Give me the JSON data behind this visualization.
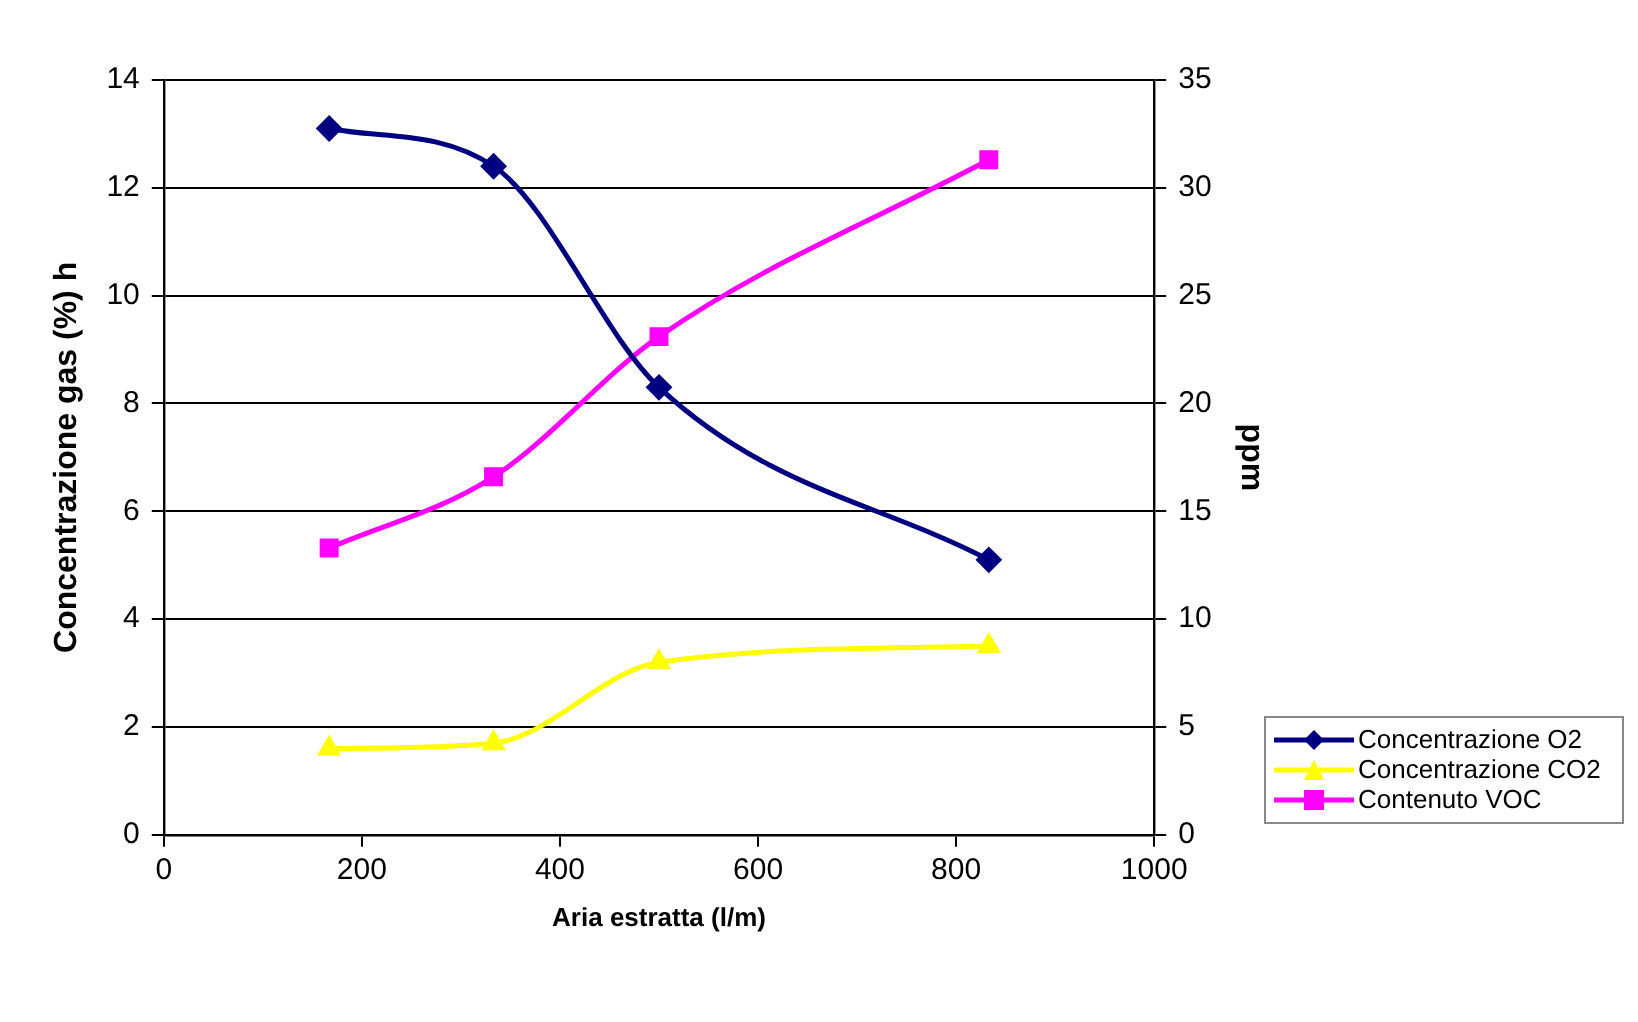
{
  "chart_data": {
    "type": "line",
    "xlabel": "Aria estratta (l/m)",
    "ylabel": "Concentrazione gas (%) h",
    "y2label": "ppm",
    "x": [
      167,
      333,
      500,
      833
    ],
    "series": [
      {
        "name": "Concentrazione O2",
        "color": "#000080",
        "marker": "diamond",
        "values": [
          13.1,
          12.4,
          8.3,
          5.1
        ]
      },
      {
        "name": "Concentrazione CO2",
        "color": "#ffff00",
        "marker": "triangle",
        "values": [
          1.6,
          1.7,
          3.2,
          3.5
        ]
      },
      {
        "name": "Contenuto VOC",
        "color": "#ff00ff",
        "marker": "square",
        "axis": "y2",
        "values": [
          13.3,
          16.6,
          23.1,
          31.3
        ]
      }
    ],
    "xlim": [
      0,
      1000
    ],
    "xticks": [
      0,
      200,
      400,
      600,
      800,
      1000
    ],
    "ylim": [
      0,
      14
    ],
    "yticks": [
      0,
      2,
      4,
      6,
      8,
      10,
      12,
      14
    ],
    "y2lim": [
      0,
      35
    ],
    "y2ticks": [
      0,
      5,
      10,
      15,
      20,
      25,
      30,
      35
    ],
    "grid": "y",
    "legend": "bottom right"
  }
}
